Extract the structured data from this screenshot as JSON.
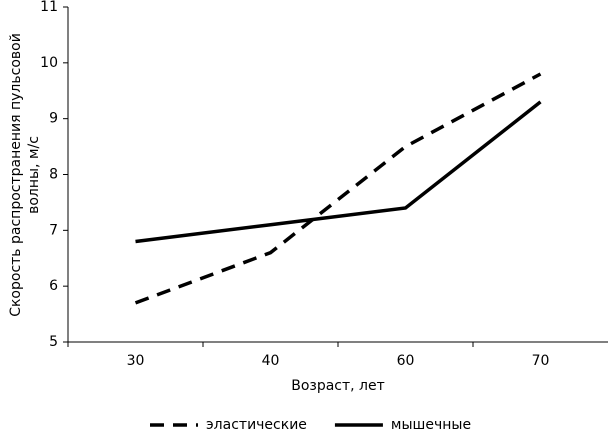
{
  "chart_data": {
    "type": "line",
    "xlabel": "Возраст, лет",
    "ylabel": [
      "Скорость распространения пульсовой",
      "волны, м/с"
    ],
    "categories": [
      "30",
      "40",
      "60",
      "70"
    ],
    "series": [
      {
        "name": "эластические",
        "color": "#000000",
        "dash": "dashed",
        "values": [
          5.7,
          6.6,
          8.5,
          9.8
        ]
      },
      {
        "name": "мышечные",
        "color": "#000000",
        "dash": "solid",
        "values": [
          6.8,
          7.1,
          7.4,
          9.3
        ]
      }
    ],
    "ylim": [
      5,
      11
    ],
    "yticks": [
      5,
      6,
      7,
      8,
      9,
      10,
      11
    ],
    "grid": false,
    "legend": "bottom"
  }
}
